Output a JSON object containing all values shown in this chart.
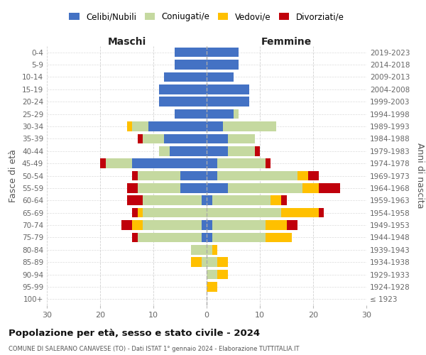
{
  "age_groups": [
    "0-4",
    "5-9",
    "10-14",
    "15-19",
    "20-24",
    "25-29",
    "30-34",
    "35-39",
    "40-44",
    "45-49",
    "50-54",
    "55-59",
    "60-64",
    "65-69",
    "70-74",
    "75-79",
    "80-84",
    "85-89",
    "90-94",
    "95-99",
    "100+"
  ],
  "birth_years": [
    "2019-2023",
    "2014-2018",
    "2009-2013",
    "2004-2008",
    "1999-2003",
    "1994-1998",
    "1989-1993",
    "1984-1988",
    "1979-1983",
    "1974-1978",
    "1969-1973",
    "1964-1968",
    "1959-1963",
    "1954-1958",
    "1949-1953",
    "1944-1948",
    "1939-1943",
    "1934-1938",
    "1929-1933",
    "1924-1928",
    "≤ 1923"
  ],
  "male_celibi": [
    6,
    6,
    8,
    9,
    9,
    6,
    11,
    8,
    7,
    14,
    5,
    5,
    1,
    0,
    1,
    1,
    0,
    0,
    0,
    0,
    0
  ],
  "male_coniugati": [
    0,
    0,
    0,
    0,
    0,
    0,
    3,
    4,
    2,
    5,
    8,
    8,
    11,
    12,
    11,
    12,
    3,
    1,
    0,
    0,
    0
  ],
  "male_vedovi": [
    0,
    0,
    0,
    0,
    0,
    0,
    1,
    0,
    0,
    0,
    0,
    0,
    0,
    1,
    2,
    0,
    0,
    2,
    0,
    0,
    0
  ],
  "male_divorziati": [
    0,
    0,
    0,
    0,
    0,
    0,
    0,
    1,
    0,
    1,
    1,
    2,
    3,
    1,
    2,
    1,
    0,
    0,
    0,
    0,
    0
  ],
  "female_nubili": [
    6,
    6,
    5,
    8,
    8,
    5,
    3,
    4,
    4,
    2,
    2,
    4,
    1,
    0,
    1,
    1,
    0,
    0,
    0,
    0,
    0
  ],
  "female_coniugate": [
    0,
    0,
    0,
    0,
    0,
    1,
    10,
    5,
    5,
    9,
    15,
    14,
    11,
    14,
    10,
    10,
    1,
    2,
    2,
    0,
    0
  ],
  "female_vedove": [
    0,
    0,
    0,
    0,
    0,
    0,
    0,
    0,
    0,
    0,
    2,
    3,
    2,
    7,
    4,
    5,
    1,
    2,
    2,
    2,
    0
  ],
  "female_divorziate": [
    0,
    0,
    0,
    0,
    0,
    0,
    0,
    0,
    1,
    1,
    2,
    4,
    1,
    1,
    2,
    0,
    0,
    0,
    0,
    0,
    0
  ],
  "colors": {
    "celibi": "#4472c4",
    "coniugati": "#c5d9a0",
    "vedovi": "#ffc000",
    "divorziati": "#c0000b"
  },
  "legend_labels": [
    "Celibi/Nubili",
    "Coniugati/e",
    "Vedovi/e",
    "Divorziati/e"
  ],
  "xlabel_left": "Maschi",
  "xlabel_right": "Femmine",
  "ylabel_left": "Fasce di età",
  "ylabel_right": "Anni di nascita",
  "title": "Popolazione per età, sesso e stato civile - 2024",
  "subtitle": "COMUNE DI SALERANO CANAVESE (TO) - Dati ISTAT 1° gennaio 2024 - Elaborazione TUTTITALIA.IT",
  "xlim": 30,
  "background_color": "#ffffff",
  "grid_color": "#cccccc"
}
